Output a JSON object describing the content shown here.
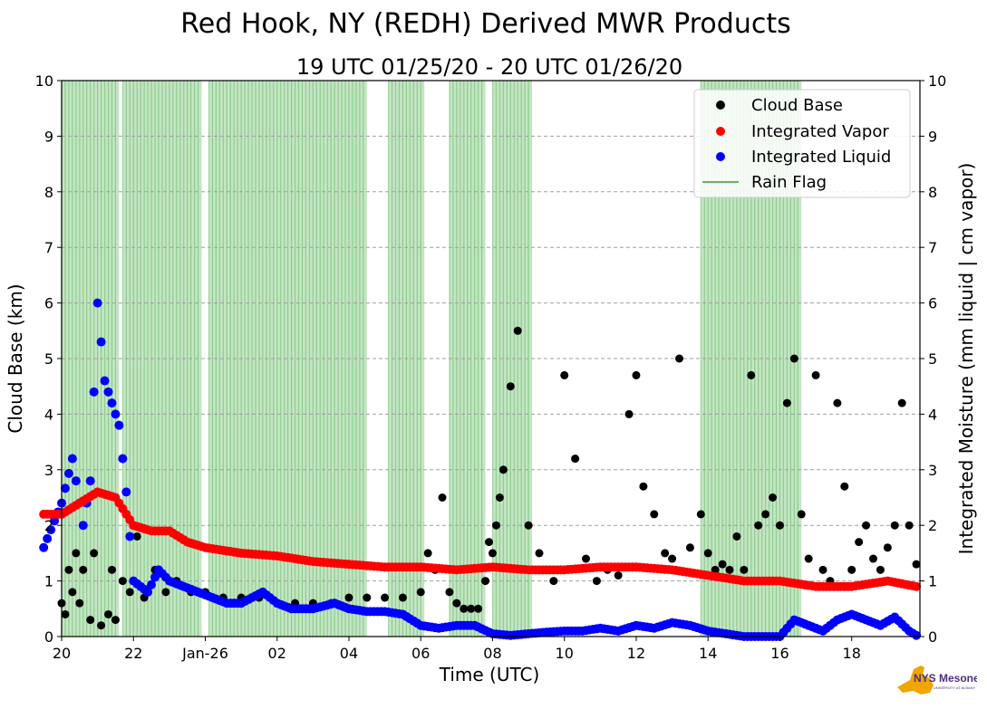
{
  "chart_data": {
    "type": "scatter",
    "title": "Red Hook, NY (REDH) Derived MWR Products",
    "subtitle": "19 UTC 01/25/20 - 20 UTC 01/26/20",
    "xlabel": "Time (UTC)",
    "ylabel_left": "Cloud Base (km)",
    "ylabel_right": "Integrated Moisture (mm liquid | cm vapor)",
    "x_ticks": [
      "20",
      "22",
      "Jan-26",
      "02",
      "04",
      "06",
      "08",
      "10",
      "12",
      "14",
      "16",
      "18"
    ],
    "y_ticks": [
      "0",
      "1",
      "2",
      "3",
      "4",
      "5",
      "6",
      "7",
      "8",
      "9",
      "10"
    ],
    "ylim": [
      0,
      10
    ],
    "grid": "horizontal dashed",
    "legend_position": "top-right",
    "legend": [
      "Cloud Base",
      "Integrated Vapor",
      "Integrated Liquid",
      "Rain Flag"
    ],
    "colors": {
      "cloud_base": "#000000",
      "vapor": "#ff0000",
      "liquid": "#0000ff",
      "rain": "#2ca02c"
    },
    "rain_flag_periods": [
      [
        20.0,
        21.6
      ],
      [
        21.7,
        23.9
      ],
      [
        24.1,
        28.5
      ],
      [
        29.1,
        30.1
      ],
      [
        30.8,
        31.8
      ],
      [
        32.0,
        33.1
      ],
      [
        37.8,
        40.6
      ]
    ],
    "series": [
      {
        "name": "Cloud Base",
        "x": [
          20.0,
          20.1,
          20.2,
          20.3,
          20.4,
          20.5,
          20.6,
          20.8,
          20.9,
          21.1,
          21.3,
          21.4,
          21.5,
          21.7,
          21.9,
          22.1,
          22.3,
          22.6,
          22.9,
          23.2,
          23.6,
          24.0,
          24.5,
          25.0,
          25.5,
          26.0,
          26.5,
          27.0,
          27.5,
          28.0,
          28.5,
          29.0,
          29.5,
          30.0,
          30.2,
          30.4,
          30.6,
          30.8,
          31.0,
          31.2,
          31.4,
          31.6,
          31.8,
          31.9,
          32.0,
          32.1,
          32.2,
          32.3,
          32.5,
          32.7,
          33.0,
          33.3,
          33.5,
          33.7,
          34.0,
          34.3,
          34.6,
          34.9,
          35.2,
          35.5,
          35.8,
          36.0,
          36.2,
          36.5,
          36.8,
          37.0,
          37.2,
          37.5,
          37.8,
          38.0,
          38.2,
          38.4,
          38.6,
          38.8,
          39.0,
          39.2,
          39.4,
          39.6,
          39.8,
          40.0,
          40.2,
          40.4,
          40.6,
          40.8,
          41.0,
          41.2,
          41.4,
          41.6,
          41.8,
          42.0,
          42.2,
          42.4,
          42.6,
          42.8,
          43.0,
          43.2,
          43.4,
          43.6,
          43.8
        ],
        "values": [
          0.6,
          0.4,
          1.2,
          0.8,
          1.5,
          0.6,
          1.2,
          0.3,
          1.5,
          0.2,
          0.4,
          1.2,
          0.3,
          1.0,
          0.8,
          1.8,
          0.7,
          1.2,
          0.8,
          1.0,
          0.8,
          0.8,
          0.7,
          0.7,
          0.7,
          0.6,
          0.6,
          0.6,
          0.6,
          0.7,
          0.7,
          0.7,
          0.7,
          0.8,
          1.5,
          1.2,
          2.5,
          0.8,
          0.6,
          0.5,
          0.5,
          0.5,
          1.0,
          1.7,
          1.5,
          2.0,
          2.5,
          3.0,
          4.5,
          5.5,
          2.0,
          1.5,
          1.2,
          1.0,
          4.7,
          3.2,
          1.4,
          1.0,
          1.2,
          1.1,
          4.0,
          4.7,
          2.7,
          2.2,
          1.5,
          1.4,
          5.0,
          1.6,
          2.2,
          1.5,
          1.2,
          1.3,
          1.2,
          1.8,
          1.2,
          4.7,
          2.0,
          2.2,
          2.5,
          2.0,
          4.2,
          5.0,
          2.2,
          1.4,
          4.7,
          1.2,
          1.0,
          4.2,
          2.7,
          1.2,
          1.7,
          2.0,
          1.4,
          1.2,
          1.6,
          2.0,
          4.2,
          2.0,
          1.3
        ]
      },
      {
        "name": "Integrated Vapor",
        "x": [
          19.5,
          20.0,
          20.5,
          21.0,
          21.5,
          22.0,
          22.5,
          23.0,
          23.5,
          24.0,
          25.0,
          26.0,
          27.0,
          28.0,
          29.0,
          30.0,
          31.0,
          32.0,
          33.0,
          34.0,
          35.0,
          36.0,
          37.0,
          38.0,
          39.0,
          40.0,
          41.0,
          42.0,
          43.0,
          43.8
        ],
        "values": [
          2.2,
          2.2,
          2.4,
          2.6,
          2.5,
          2.0,
          1.9,
          1.9,
          1.7,
          1.6,
          1.5,
          1.45,
          1.35,
          1.3,
          1.25,
          1.25,
          1.2,
          1.25,
          1.2,
          1.2,
          1.25,
          1.25,
          1.2,
          1.1,
          1.0,
          1.0,
          0.9,
          0.9,
          1.0,
          0.9
        ]
      },
      {
        "name": "Integrated Liquid",
        "x": [
          19.5,
          20.0,
          20.3,
          20.6,
          20.8,
          21.0,
          21.2,
          21.4,
          21.6,
          21.8,
          22.0,
          22.4,
          22.7,
          23.0,
          23.4,
          23.8,
          24.2,
          24.6,
          25.0,
          25.6,
          26.0,
          26.4,
          27.0,
          27.6,
          28.0,
          28.5,
          29.0,
          29.5,
          30.0,
          30.5,
          31.0,
          31.5,
          32.0,
          32.5,
          33.0,
          33.5,
          34.0,
          34.5,
          35.0,
          35.5,
          36.0,
          36.5,
          37.0,
          37.5,
          38.0,
          38.5,
          39.0,
          39.5,
          40.0,
          40.4,
          40.8,
          41.2,
          41.6,
          42.0,
          42.4,
          42.8,
          43.2,
          43.6,
          43.8
        ],
        "values": [
          1.6,
          2.4,
          3.2,
          2.0,
          2.8,
          6.0,
          4.6,
          4.2,
          3.8,
          2.6,
          1.0,
          0.8,
          1.2,
          1.0,
          0.9,
          0.8,
          0.7,
          0.6,
          0.6,
          0.8,
          0.6,
          0.5,
          0.5,
          0.6,
          0.5,
          0.45,
          0.45,
          0.4,
          0.2,
          0.15,
          0.2,
          0.2,
          0.05,
          0.02,
          0.05,
          0.08,
          0.1,
          0.1,
          0.15,
          0.1,
          0.2,
          0.15,
          0.25,
          0.2,
          0.1,
          0.05,
          0.0,
          0.0,
          0.0,
          0.3,
          0.2,
          0.1,
          0.3,
          0.4,
          0.3,
          0.2,
          0.35,
          0.1,
          0.02
        ]
      },
      {
        "name": "Rain Flag"
      }
    ]
  },
  "logo": {
    "text": "NYS Mesonet",
    "subtext": "UNIVERSITY AT ALBANY",
    "colors": {
      "state": "#f0a500",
      "text": "#4b2e83"
    }
  }
}
